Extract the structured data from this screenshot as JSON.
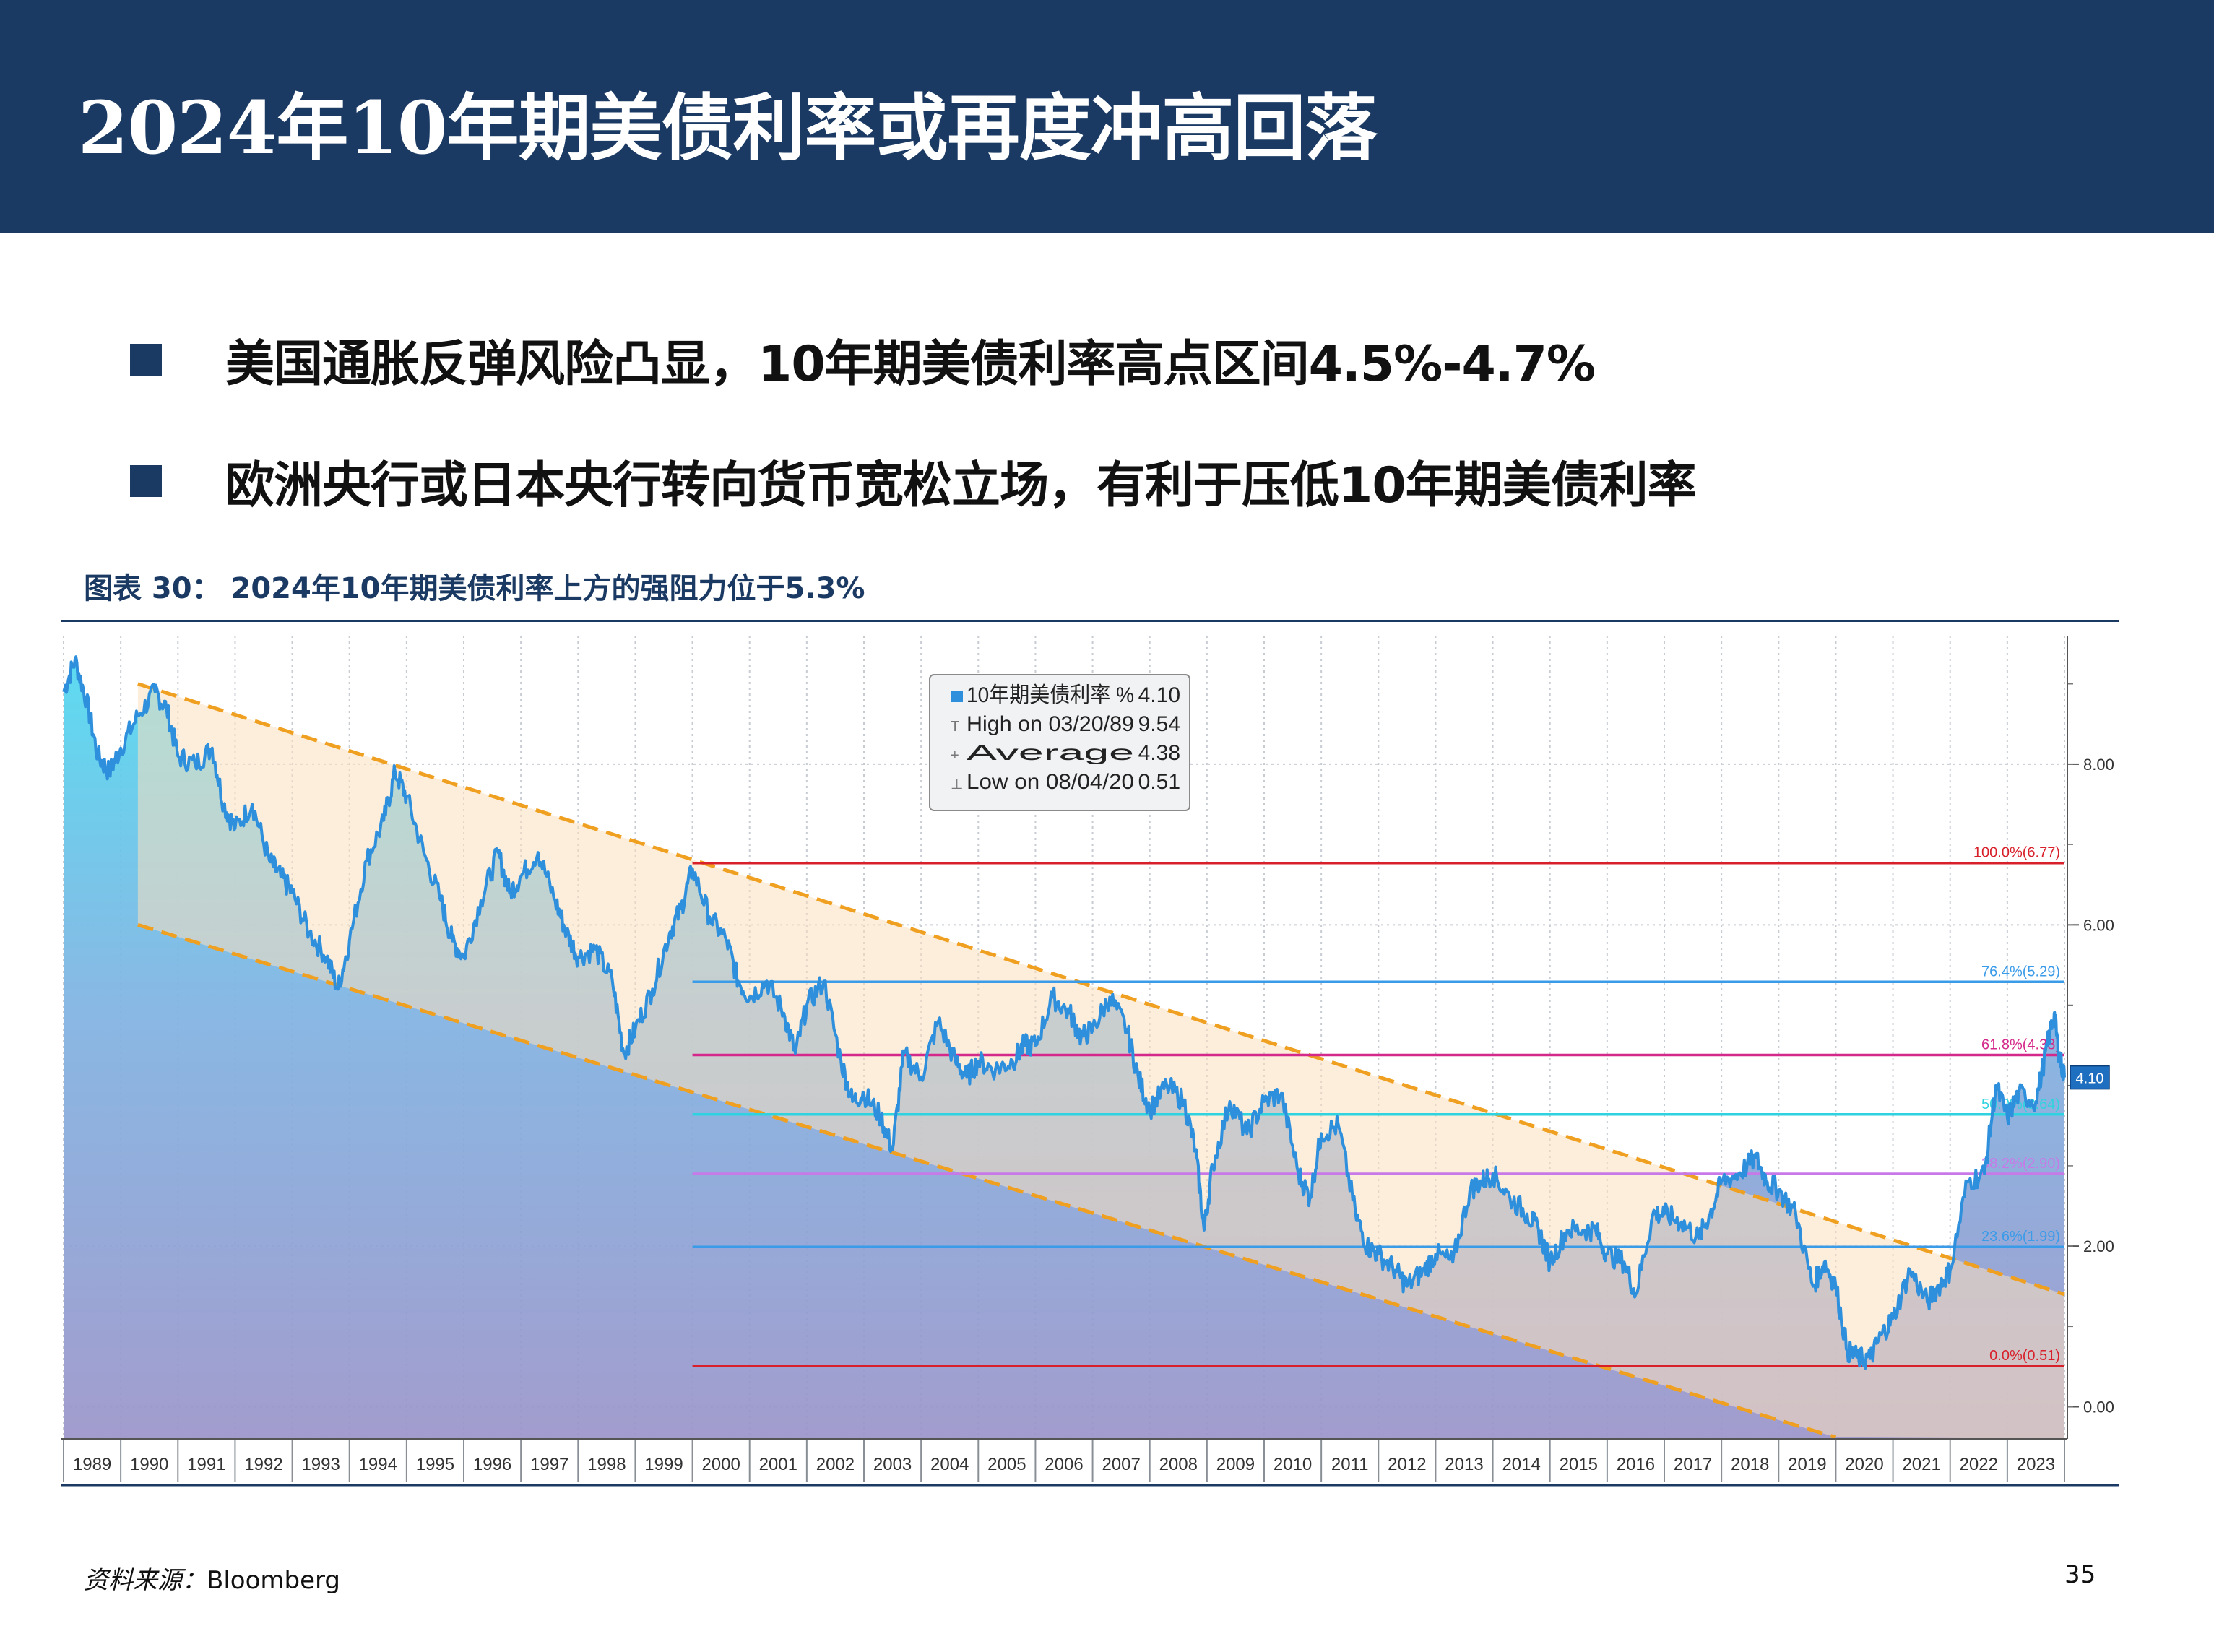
{
  "header": {
    "title": "2024年10年期美债利率或再度冲高回落"
  },
  "bullets": [
    "美国通胀反弹风险凸显，10年期美债利率高点区间4.5%-4.7%",
    "欧洲央行或日本央行转向货币宽松立场，有利于压低10年期美债利率"
  ],
  "figure": {
    "caption": "图表 30：  2024年10年期美债利率上方的强阻力位于5.3%"
  },
  "footer": {
    "source_label": "资料来源：",
    "source_value": "Bloomberg",
    "page": "35"
  },
  "chart_data": {
    "type": "line",
    "x_labels": [
      "1989",
      "1990",
      "1991",
      "1992",
      "1993",
      "1994",
      "1995",
      "1996",
      "1997",
      "1998",
      "1999",
      "2000",
      "2001",
      "2002",
      "2003",
      "2004",
      "2005",
      "2006",
      "2007",
      "2008",
      "2009",
      "2010",
      "2011",
      "2012",
      "2013",
      "2014",
      "2015",
      "2016",
      "2017",
      "2018",
      "2019",
      "2020",
      "2021",
      "2022",
      "2023"
    ],
    "xlim": [
      1989.0,
      2024.0
    ],
    "ylim": [
      -0.4,
      9.6
    ],
    "y_ticks": [
      "8.00",
      "6.00",
      "2.00",
      "0.00"
    ],
    "y_tick_values": [
      8,
      6,
      2,
      0
    ],
    "series": [
      {
        "name": "10年期美债利率",
        "unit": "%",
        "color": "#2e8fdc",
        "points": [
          [
            1989.0,
            8.9
          ],
          [
            1989.2,
            9.3
          ],
          [
            1989.4,
            8.8
          ],
          [
            1989.6,
            8.1
          ],
          [
            1989.8,
            7.9
          ],
          [
            1990.0,
            8.2
          ],
          [
            1990.3,
            8.6
          ],
          [
            1990.6,
            8.9
          ],
          [
            1990.8,
            8.7
          ],
          [
            1991.0,
            8.1
          ],
          [
            1991.3,
            8.0
          ],
          [
            1991.6,
            8.2
          ],
          [
            1991.8,
            7.5
          ],
          [
            1992.0,
            7.2
          ],
          [
            1992.3,
            7.5
          ],
          [
            1992.6,
            6.8
          ],
          [
            1992.8,
            6.6
          ],
          [
            1993.0,
            6.4
          ],
          [
            1993.3,
            5.9
          ],
          [
            1993.6,
            5.6
          ],
          [
            1993.8,
            5.2
          ],
          [
            1994.0,
            5.8
          ],
          [
            1994.3,
            6.8
          ],
          [
            1994.6,
            7.3
          ],
          [
            1994.8,
            7.9
          ],
          [
            1995.0,
            7.6
          ],
          [
            1995.3,
            6.9
          ],
          [
            1995.6,
            6.3
          ],
          [
            1995.8,
            5.8
          ],
          [
            1996.0,
            5.6
          ],
          [
            1996.3,
            6.3
          ],
          [
            1996.6,
            6.9
          ],
          [
            1996.8,
            6.4
          ],
          [
            1997.0,
            6.6
          ],
          [
            1997.3,
            6.9
          ],
          [
            1997.6,
            6.3
          ],
          [
            1997.8,
            5.9
          ],
          [
            1998.0,
            5.6
          ],
          [
            1998.3,
            5.7
          ],
          [
            1998.6,
            5.3
          ],
          [
            1998.8,
            4.4
          ],
          [
            1999.0,
            4.7
          ],
          [
            1999.3,
            5.2
          ],
          [
            1999.6,
            5.9
          ],
          [
            1999.8,
            6.2
          ],
          [
            2000.0,
            6.7
          ],
          [
            2000.3,
            6.1
          ],
          [
            2000.6,
            5.8
          ],
          [
            2000.8,
            5.3
          ],
          [
            2001.0,
            5.1
          ],
          [
            2001.3,
            5.3
          ],
          [
            2001.6,
            4.9
          ],
          [
            2001.8,
            4.4
          ],
          [
            2002.0,
            5.0
          ],
          [
            2002.3,
            5.3
          ],
          [
            2002.6,
            4.3
          ],
          [
            2002.8,
            3.8
          ],
          [
            2003.0,
            3.9
          ],
          [
            2003.3,
            3.6
          ],
          [
            2003.5,
            3.2
          ],
          [
            2003.7,
            4.4
          ],
          [
            2004.0,
            4.1
          ],
          [
            2004.3,
            4.8
          ],
          [
            2004.6,
            4.3
          ],
          [
            2004.8,
            4.1
          ],
          [
            2005.0,
            4.3
          ],
          [
            2005.3,
            4.2
          ],
          [
            2005.6,
            4.3
          ],
          [
            2005.8,
            4.5
          ],
          [
            2006.0,
            4.5
          ],
          [
            2006.3,
            5.1
          ],
          [
            2006.6,
            4.9
          ],
          [
            2006.8,
            4.6
          ],
          [
            2007.0,
            4.7
          ],
          [
            2007.3,
            5.1
          ],
          [
            2007.6,
            4.7
          ],
          [
            2007.8,
            4.1
          ],
          [
            2008.0,
            3.7
          ],
          [
            2008.3,
            4.0
          ],
          [
            2008.6,
            3.8
          ],
          [
            2008.8,
            3.2
          ],
          [
            2008.95,
            2.2
          ],
          [
            2009.1,
            3.0
          ],
          [
            2009.4,
            3.8
          ],
          [
            2009.7,
            3.4
          ],
          [
            2010.0,
            3.8
          ],
          [
            2010.3,
            3.9
          ],
          [
            2010.6,
            2.9
          ],
          [
            2010.8,
            2.6
          ],
          [
            2011.0,
            3.4
          ],
          [
            2011.3,
            3.5
          ],
          [
            2011.6,
            2.4
          ],
          [
            2011.8,
            2.0
          ],
          [
            2012.0,
            1.9
          ],
          [
            2012.3,
            1.7
          ],
          [
            2012.5,
            1.5
          ],
          [
            2012.8,
            1.7
          ],
          [
            2013.0,
            1.9
          ],
          [
            2013.3,
            1.8
          ],
          [
            2013.6,
            2.7
          ],
          [
            2013.8,
            2.8
          ],
          [
            2014.0,
            2.9
          ],
          [
            2014.3,
            2.6
          ],
          [
            2014.6,
            2.4
          ],
          [
            2014.8,
            2.2
          ],
          [
            2015.0,
            1.8
          ],
          [
            2015.3,
            2.2
          ],
          [
            2015.6,
            2.2
          ],
          [
            2015.8,
            2.2
          ],
          [
            2016.0,
            1.9
          ],
          [
            2016.3,
            1.8
          ],
          [
            2016.5,
            1.4
          ],
          [
            2016.8,
            2.4
          ],
          [
            2017.0,
            2.4
          ],
          [
            2017.3,
            2.3
          ],
          [
            2017.6,
            2.1
          ],
          [
            2017.8,
            2.4
          ],
          [
            2018.0,
            2.8
          ],
          [
            2018.3,
            2.9
          ],
          [
            2018.6,
            3.1
          ],
          [
            2018.8,
            2.8
          ],
          [
            2019.0,
            2.7
          ],
          [
            2019.3,
            2.4
          ],
          [
            2019.6,
            1.5
          ],
          [
            2019.8,
            1.8
          ],
          [
            2020.0,
            1.5
          ],
          [
            2020.2,
            0.7
          ],
          [
            2020.4,
            0.6
          ],
          [
            2020.6,
            0.6
          ],
          [
            2020.8,
            0.9
          ],
          [
            2021.0,
            1.1
          ],
          [
            2021.3,
            1.7
          ],
          [
            2021.6,
            1.3
          ],
          [
            2021.8,
            1.5
          ],
          [
            2022.0,
            1.7
          ],
          [
            2022.3,
            2.8
          ],
          [
            2022.6,
            2.9
          ],
          [
            2022.8,
            4.0
          ],
          [
            2023.0,
            3.6
          ],
          [
            2023.2,
            3.9
          ],
          [
            2023.5,
            3.8
          ],
          [
            2023.7,
            4.5
          ],
          [
            2023.82,
            4.9
          ],
          [
            2023.9,
            4.4
          ],
          [
            2024.0,
            4.1
          ]
        ]
      }
    ],
    "legend": [
      {
        "label": "10年期美债利率 %",
        "value": "4.10"
      },
      {
        "label": "High on 03/20/89",
        "value": "9.54"
      },
      {
        "label": "Average",
        "value": "4.38"
      },
      {
        "label": "Low on 08/04/20",
        "value": "0.51"
      }
    ],
    "legend_placement": "top-center",
    "last_value_tag": "4.10",
    "fib_levels": [
      {
        "label": "100.0%(6.77)",
        "value": 6.77,
        "color": "#d8202a"
      },
      {
        "label": "76.4%(5.29)",
        "value": 5.29,
        "color": "#3a9be8"
      },
      {
        "label": "61.8%(4.38)",
        "value": 4.38,
        "color": "#d4288a"
      },
      {
        "label": "50.0%(3.64)",
        "value": 3.64,
        "color": "#2fd3df"
      },
      {
        "label": "38.2%(2.90)",
        "value": 2.9,
        "color": "#c879e8"
      },
      {
        "label": "23.6%(1.99)",
        "value": 1.99,
        "color": "#3a9be8"
      },
      {
        "label": "0.0%(0.51)",
        "value": 0.51,
        "color": "#d8202a"
      }
    ],
    "fib_start": 2000.0,
    "channel": {
      "color": "#f0a020",
      "upper": [
        [
          1990.3,
          9.0
        ],
        [
          2024.0,
          1.4
        ]
      ],
      "lower": [
        [
          1990.3,
          6.0
        ],
        [
          2020.0,
          -0.38
        ]
      ]
    },
    "grid": true
  }
}
